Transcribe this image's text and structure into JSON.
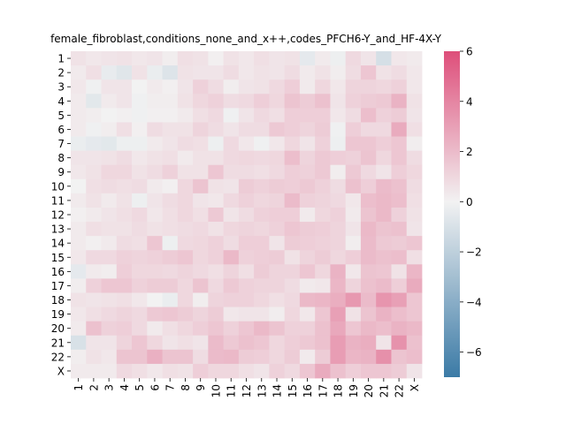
{
  "chart_data": {
    "type": "heatmap",
    "title": "female_fibroblast,conditions_none_and_x++,codes_PFCH6-Y_and_HF-4X-Y",
    "xlabel": "",
    "ylabel": "",
    "rows": [
      "1",
      "2",
      "3",
      "4",
      "5",
      "6",
      "7",
      "8",
      "9",
      "10",
      "11",
      "12",
      "13",
      "14",
      "15",
      "16",
      "17",
      "18",
      "19",
      "20",
      "21",
      "22",
      "X"
    ],
    "cols": [
      "1",
      "2",
      "3",
      "4",
      "5",
      "6",
      "7",
      "8",
      "9",
      "10",
      "11",
      "12",
      "13",
      "14",
      "15",
      "16",
      "17",
      "18",
      "19",
      "20",
      "21",
      "22",
      "X"
    ],
    "colorbar": {
      "min": -7,
      "max": 6,
      "ticks": [
        6,
        4,
        2,
        0,
        -2,
        -4,
        -6
      ],
      "tick_labels": [
        "6",
        "4",
        "2",
        "0",
        "−2",
        "−4",
        "−6"
      ],
      "low_color": "#3b7aa6",
      "mid_color": "#f2f2f2",
      "high_color": "#de4e7a"
    },
    "values": [
      [
        0.6,
        0.4,
        0.5,
        0.6,
        0.4,
        0.5,
        0.2,
        0.7,
        0.6,
        0.1,
        0.6,
        0.4,
        0.7,
        0.5,
        0.6,
        -0.5,
        0.3,
        -0.2,
        0.9,
        0.5,
        -1.1,
        0.4,
        0.3
      ],
      [
        0.3,
        0.7,
        -0.4,
        -0.7,
        0.6,
        -0.3,
        -0.8,
        0.6,
        0.5,
        0.5,
        0.8,
        0.4,
        0.6,
        0.5,
        0.8,
        0.3,
        0.6,
        0.2,
        0.8,
        1.6,
        0.6,
        0.8,
        0.4
      ],
      [
        0.4,
        -0.1,
        0.5,
        0.5,
        0.0,
        0.3,
        0.1,
        0.5,
        1.2,
        0.8,
        0.2,
        0.5,
        0.6,
        0.9,
        1.3,
        0.3,
        1.0,
        0.4,
        1.1,
        1.1,
        1.0,
        1.2,
        0.4
      ],
      [
        0.3,
        -0.6,
        0.3,
        0.5,
        -0.1,
        0.2,
        0.2,
        0.6,
        1.0,
        1.2,
        0.8,
        0.9,
        1.3,
        1.0,
        1.7,
        1.4,
        1.8,
        0.5,
        1.2,
        1.4,
        1.5,
        2.3,
        0.6
      ],
      [
        0.3,
        0.2,
        0.0,
        0.1,
        -0.1,
        0.1,
        0.1,
        0.3,
        0.7,
        0.9,
        -0.1,
        0.5,
        0.9,
        0.7,
        1.3,
        1.3,
        1.3,
        0.4,
        0.8,
        1.9,
        1.2,
        1.4,
        0.5
      ],
      [
        0.3,
        -0.1,
        0.2,
        0.7,
        0.1,
        0.8,
        0.6,
        0.6,
        1.1,
        0.8,
        0.5,
        0.8,
        0.8,
        1.5,
        1.3,
        1.1,
        1.4,
        -0.1,
        1.3,
        0.9,
        0.9,
        2.6,
        0.7
      ],
      [
        -0.3,
        -0.5,
        -0.6,
        -0.2,
        -0.2,
        0.3,
        0.5,
        0.8,
        0.7,
        -0.2,
        0.9,
        0.4,
        -0.1,
        0.4,
        1.0,
        0.5,
        1.2,
        -0.2,
        1.6,
        1.6,
        1.3,
        1.6,
        0.2
      ],
      [
        0.5,
        0.5,
        0.6,
        0.8,
        0.4,
        0.6,
        0.7,
        0.3,
        0.6,
        0.6,
        0.9,
        1.0,
        0.9,
        1.0,
        1.9,
        1.1,
        1.5,
        1.3,
        1.2,
        1.7,
        1.0,
        1.6,
        0.8
      ],
      [
        0.4,
        0.6,
        1.0,
        1.0,
        0.6,
        0.8,
        1.2,
        0.6,
        0.6,
        1.6,
        0.8,
        0.8,
        0.7,
        0.9,
        1.3,
        1.2,
        1.5,
        0.2,
        1.5,
        0.9,
        0.5,
        1.3,
        1.0
      ],
      [
        0.0,
        0.7,
        0.8,
        0.7,
        0.8,
        0.3,
        0.1,
        1.0,
        1.7,
        0.6,
        0.5,
        1.4,
        1.2,
        1.4,
        1.3,
        1.5,
        1.2,
        0.8,
        1.8,
        1.3,
        2.0,
        1.8,
        0.8
      ],
      [
        0.3,
        0.6,
        0.3,
        0.6,
        -0.2,
        0.5,
        0.8,
        1.0,
        0.5,
        0.4,
        0.9,
        1.2,
        1.0,
        1.1,
        2.0,
        1.2,
        1.1,
        0.9,
        0.4,
        1.9,
        2.1,
        1.9,
        0.7
      ],
      [
        0.1,
        0.3,
        0.5,
        0.7,
        0.9,
        0.4,
        0.7,
        1.0,
        0.7,
        1.5,
        0.5,
        0.8,
        1.2,
        1.3,
        1.3,
        0.3,
        1.0,
        1.2,
        0.3,
        1.7,
        2.1,
        1.2,
        0.6
      ],
      [
        0.3,
        0.7,
        0.6,
        0.6,
        0.8,
        0.6,
        0.7,
        0.8,
        0.9,
        0.6,
        1.0,
        1.1,
        1.0,
        1.2,
        1.6,
        1.4,
        1.3,
        1.1,
        0.5,
        2.1,
        1.7,
        1.8,
        0.5
      ],
      [
        0.3,
        0.1,
        0.3,
        0.8,
        0.7,
        1.6,
        -0.2,
        0.9,
        1.0,
        1.2,
        0.8,
        1.3,
        1.3,
        0.5,
        1.4,
        1.3,
        1.2,
        1.1,
        0.2,
        2.0,
        1.5,
        1.4,
        1.6
      ],
      [
        0.4,
        0.9,
        0.9,
        1.2,
        1.1,
        1.2,
        1.4,
        1.6,
        1.0,
        1.2,
        2.1,
        1.2,
        1.3,
        1.4,
        0.6,
        1.1,
        1.4,
        1.0,
        1.3,
        2.0,
        1.8,
        1.9,
        0.7
      ],
      [
        -0.5,
        0.3,
        0.2,
        1.3,
        1.0,
        1.0,
        0.9,
        1.1,
        0.9,
        0.7,
        1.1,
        0.7,
        1.4,
        1.1,
        1.1,
        1.6,
        1.0,
        2.3,
        0.4,
        1.7,
        1.6,
        0.6,
        2.2
      ],
      [
        0.2,
        1.2,
        1.6,
        1.6,
        1.2,
        1.4,
        1.4,
        1.0,
        1.7,
        0.9,
        1.5,
        1.2,
        1.1,
        1.1,
        0.8,
        0.3,
        0.4,
        2.2,
        1.1,
        1.8,
        2.0,
        1.3,
        2.6
      ],
      [
        0.6,
        0.5,
        0.6,
        0.7,
        0.4,
        0.0,
        -0.3,
        1.0,
        0.2,
        1.1,
        1.2,
        1.2,
        1.0,
        0.7,
        0.9,
        2.1,
        2.2,
        2.5,
        3.3,
        2.0,
        3.4,
        3.0,
        1.6
      ],
      [
        0.4,
        0.7,
        0.9,
        1.1,
        0.9,
        1.5,
        1.6,
        1.4,
        1.1,
        1.4,
        0.4,
        0.5,
        0.5,
        0.2,
        1.0,
        0.4,
        1.6,
        3.0,
        0.6,
        1.7,
        2.3,
        1.9,
        1.6
      ],
      [
        0.3,
        1.8,
        1.2,
        1.3,
        0.9,
        0.3,
        0.7,
        1.0,
        1.3,
        1.6,
        1.2,
        1.6,
        2.1,
        1.7,
        1.2,
        1.2,
        1.8,
        2.7,
        1.6,
        2.1,
        1.9,
        2.3,
        2.1
      ],
      [
        -1.0,
        0.5,
        0.5,
        1.1,
        1.6,
        1.0,
        0.5,
        0.7,
        0.5,
        2.0,
        1.5,
        1.8,
        1.6,
        1.0,
        1.3,
        1.5,
        1.8,
        3.1,
        2.3,
        2.5,
        0.5,
        3.5,
        1.8
      ],
      [
        0.2,
        0.6,
        0.4,
        1.7,
        1.7,
        2.4,
        1.7,
        1.7,
        0.8,
        2.0,
        2.1,
        1.4,
        1.3,
        1.0,
        1.4,
        0.3,
        1.4,
        3.1,
        2.2,
        2.3,
        3.6,
        1.7,
        1.9
      ],
      [
        0.3,
        0.3,
        0.3,
        0.9,
        0.7,
        0.4,
        0.7,
        0.6,
        1.3,
        1.0,
        1.0,
        0.7,
        0.5,
        1.2,
        0.9,
        1.6,
        2.6,
        1.8,
        1.3,
        1.6,
        1.6,
        1.4,
        0.5
      ]
    ]
  }
}
